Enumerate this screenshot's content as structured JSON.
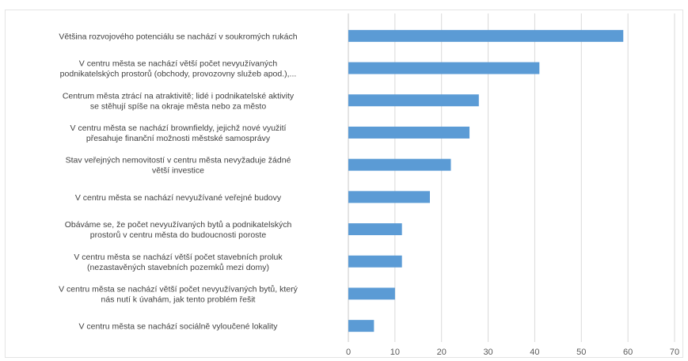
{
  "chart_data": {
    "type": "bar",
    "orientation": "horizontal",
    "categories": [
      [
        "Většina rozvojového potenciálu se nachází v soukromých rukách"
      ],
      [
        "V centru města se nachází větší počet nevyužívaných",
        "podnikatelských prostorů (obchody, provozovny služeb apod.),..."
      ],
      [
        "Centrum města ztrácí na atraktivitě; lidé i podnikatelské aktivity",
        "se stěhují spíše na okraje města nebo za město"
      ],
      [
        "V centru města se nachází brownfieldy, jejichž nové využití",
        "přesahuje finanční možnosti městské samosprávy"
      ],
      [
        "Stav veřejných nemovitostí v centru města nevyžaduje žádné",
        "větší investice"
      ],
      [
        "V centru města se nachází nevyužívané veřejné budovy"
      ],
      [
        "Obáváme se, že počet nevyužívaných bytů a podnikatelských",
        "prostorů v centru města do budoucnosti poroste"
      ],
      [
        "V centru města se nachází větší počet stavebních proluk",
        "(nezastavěných stavebních pozemků mezi domy)"
      ],
      [
        "V centru města se nachází větší počet nevyužívaných bytů, který",
        "nás nutí k úvahám, jak tento problém řešit"
      ],
      [
        "V centru města se nachází sociálně vyloučené lokality"
      ]
    ],
    "values": [
      59,
      41,
      28,
      26,
      22,
      17.5,
      11.5,
      11.5,
      10,
      5.5
    ],
    "xlim": [
      0,
      70
    ],
    "xticks": [
      "0",
      "10",
      "20",
      "30",
      "40",
      "50",
      "60",
      "70"
    ],
    "grid": "vertical",
    "bar_color": "#5b9bd5",
    "title": "",
    "xlabel": "",
    "ylabel": ""
  }
}
